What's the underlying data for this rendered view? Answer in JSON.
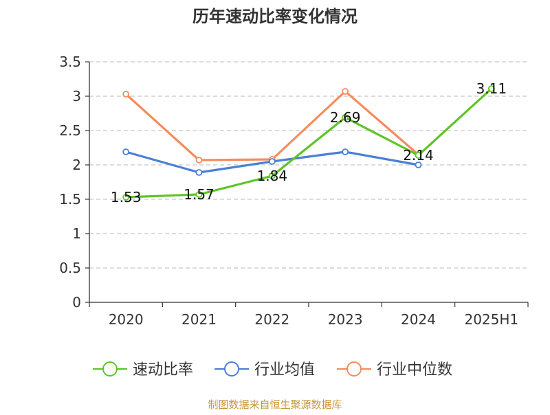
{
  "chart_data": {
    "type": "line",
    "title": "历年速动比率变化情况",
    "categories": [
      "2020",
      "2021",
      "2022",
      "2023",
      "2024",
      "2025H1"
    ],
    "ylim": [
      0,
      3.5
    ],
    "yticks": [
      "0",
      "0.5",
      "1",
      "1.5",
      "2",
      "2.5",
      "3",
      "3.5"
    ],
    "ytick_values": [
      0,
      0.5,
      1,
      1.5,
      2,
      2.5,
      3,
      3.5
    ],
    "grid": true,
    "legend_position": "bottom",
    "series": [
      {
        "name": "速动比率",
        "color": "#5cc524",
        "values": [
          1.53,
          1.57,
          1.84,
          2.69,
          2.14,
          3.11
        ],
        "labels": [
          "1.53",
          "1.57",
          "1.84",
          "2.69",
          "2.14",
          "3.11"
        ]
      },
      {
        "name": "行业均值",
        "color": "#4a7fd8",
        "values": [
          2.19,
          1.89,
          2.05,
          2.19,
          2.0,
          null
        ]
      },
      {
        "name": "行业中位数",
        "color": "#f48c5c",
        "values": [
          3.03,
          2.07,
          2.08,
          3.07,
          2.15,
          null
        ]
      }
    ]
  },
  "source_note": "制图数据来自恒生聚源数据库"
}
